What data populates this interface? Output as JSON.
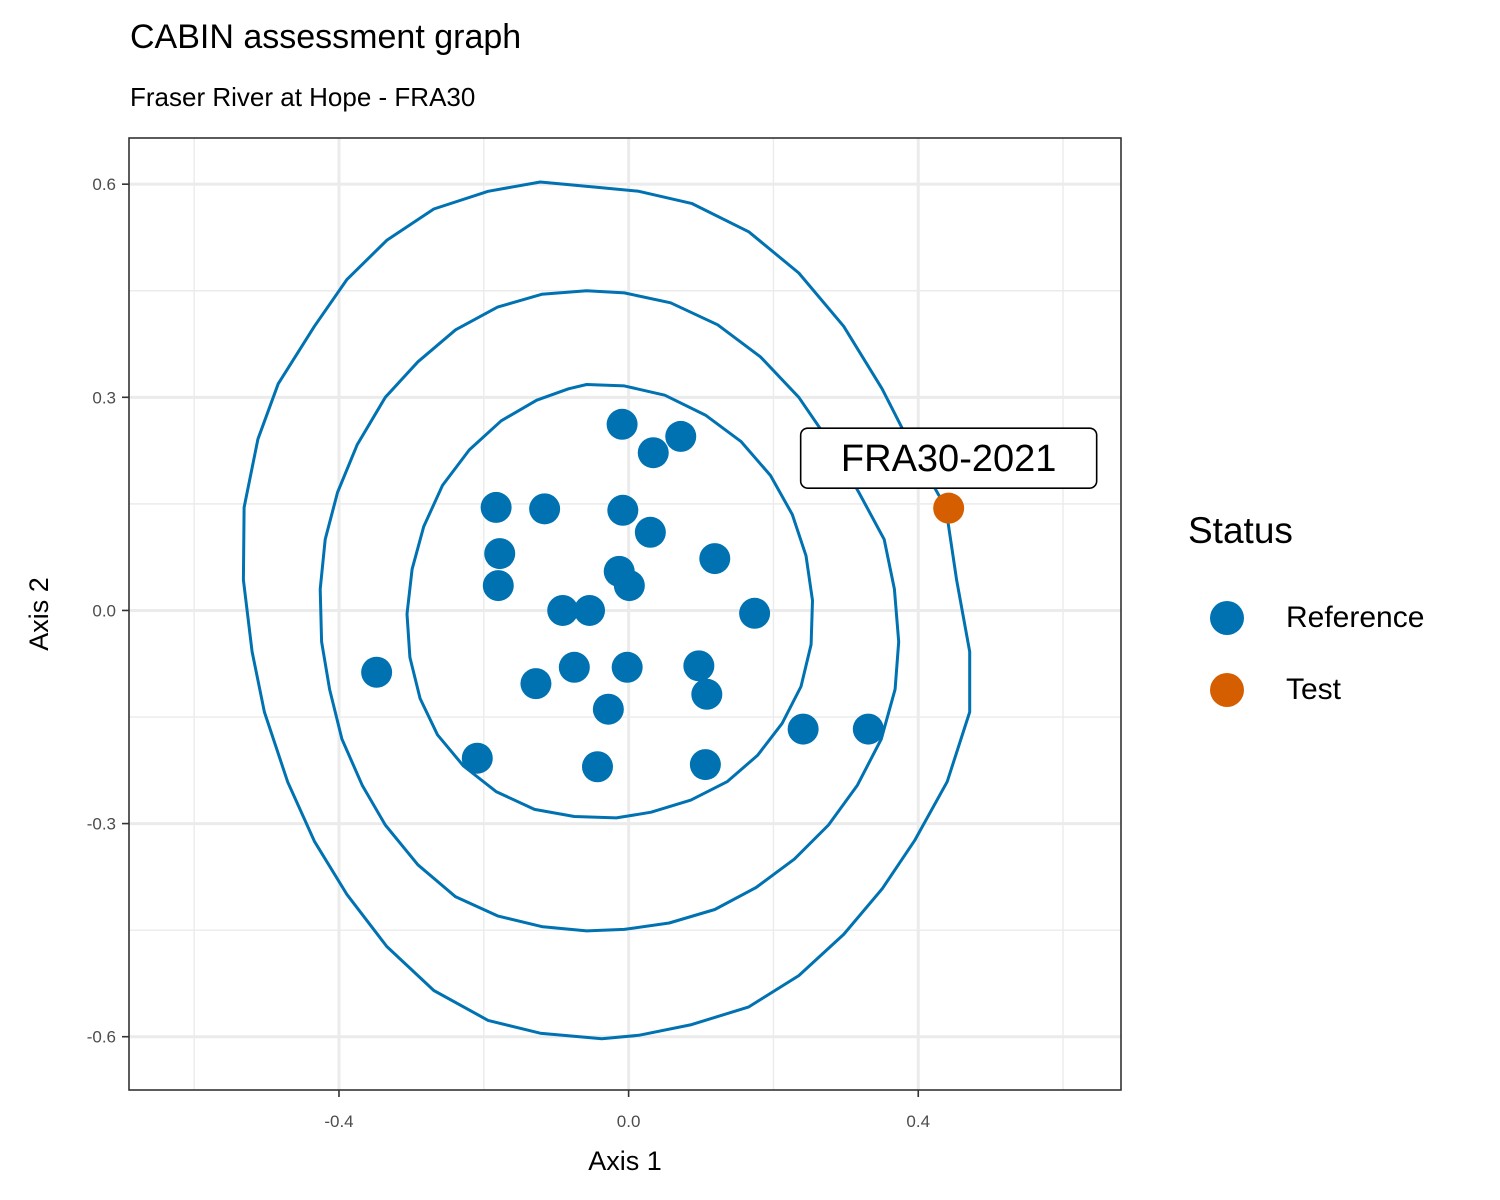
{
  "title": "CABIN assessment graph",
  "subtitle": "Fraser River at Hope - FRA30",
  "legend": {
    "title": "Status",
    "items": [
      {
        "label": "Reference",
        "color": "#0072B2"
      },
      {
        "label": "Test",
        "color": "#D55E00"
      }
    ]
  },
  "chart_data": {
    "type": "scatter",
    "title": "CABIN assessment graph",
    "subtitle": "Fraser River at Hope - FRA30",
    "xlabel": "Axis 1",
    "ylabel": "Axis 2",
    "xlim": [
      -0.69,
      0.68
    ],
    "ylim": [
      -0.675,
      0.665
    ],
    "xticks": [
      -0.4,
      0.0,
      0.4
    ],
    "xtick_labels": [
      "-0.4",
      "0.0",
      "0.4"
    ],
    "yticks": [
      -0.6,
      -0.3,
      0.0,
      0.3,
      0.6
    ],
    "ytick_labels": [
      "-0.6",
      "-0.3",
      "0.0",
      "0.3",
      "0.6"
    ],
    "grid": true,
    "legend_position": "right",
    "series": [
      {
        "name": "Reference",
        "color": "#0072B2",
        "points": [
          [
            -0.009,
            0.262
          ],
          [
            0.072,
            0.245
          ],
          [
            0.034,
            0.222
          ],
          [
            -0.183,
            0.145
          ],
          [
            -0.116,
            0.143
          ],
          [
            -0.008,
            0.141
          ],
          [
            0.03,
            0.11
          ],
          [
            -0.178,
            0.08
          ],
          [
            0.119,
            0.073
          ],
          [
            -0.013,
            0.055
          ],
          [
            0.001,
            0.035
          ],
          [
            -0.18,
            0.035
          ],
          [
            -0.091,
            0.0
          ],
          [
            -0.054,
            0.0
          ],
          [
            0.174,
            -0.004
          ],
          [
            -0.348,
            -0.087
          ],
          [
            -0.075,
            -0.08
          ],
          [
            -0.002,
            -0.08
          ],
          [
            0.097,
            -0.078
          ],
          [
            -0.128,
            -0.103
          ],
          [
            0.108,
            -0.118
          ],
          [
            -0.028,
            -0.139
          ],
          [
            0.241,
            -0.167
          ],
          [
            0.331,
            -0.167
          ],
          [
            -0.209,
            -0.208
          ],
          [
            -0.043,
            -0.22
          ],
          [
            0.106,
            -0.217
          ]
        ]
      },
      {
        "name": "Test",
        "color": "#D55E00",
        "points": [
          [
            0.442,
            0.144
          ]
        ],
        "label": "FRA30-2021"
      }
    ],
    "ellipses": {
      "color": "#0072B2",
      "rings": [
        [
          [
            -0.037,
            0.595
          ],
          [
            0.014,
            0.59
          ],
          [
            0.087,
            0.573
          ],
          [
            0.166,
            0.533
          ],
          [
            0.235,
            0.475
          ],
          [
            0.297,
            0.4
          ],
          [
            0.35,
            0.312
          ],
          [
            0.395,
            0.222
          ],
          [
            0.438,
            0.145
          ],
          [
            0.453,
            0.043
          ],
          [
            0.471,
            -0.058
          ],
          [
            0.471,
            -0.143
          ],
          [
            0.44,
            -0.241
          ],
          [
            0.395,
            -0.324
          ],
          [
            0.35,
            -0.392
          ],
          [
            0.297,
            -0.456
          ],
          [
            0.235,
            -0.514
          ],
          [
            0.166,
            -0.558
          ],
          [
            0.087,
            -0.583
          ],
          [
            0.014,
            -0.598
          ],
          [
            -0.037,
            -0.603
          ],
          [
            -0.122,
            -0.595
          ],
          [
            -0.194,
            -0.577
          ],
          [
            -0.269,
            -0.535
          ],
          [
            -0.334,
            -0.473
          ],
          [
            -0.389,
            -0.4
          ],
          [
            -0.434,
            -0.325
          ],
          [
            -0.471,
            -0.241
          ],
          [
            -0.503,
            -0.143
          ],
          [
            -0.52,
            -0.058
          ],
          [
            -0.532,
            0.043
          ],
          [
            -0.531,
            0.145
          ],
          [
            -0.512,
            0.241
          ],
          [
            -0.484,
            0.319
          ],
          [
            -0.434,
            0.4
          ],
          [
            -0.389,
            0.466
          ],
          [
            -0.334,
            0.521
          ],
          [
            -0.269,
            0.565
          ],
          [
            -0.194,
            0.59
          ],
          [
            -0.122,
            0.603
          ]
        ],
        [
          [
            -0.058,
            0.45
          ],
          [
            -0.006,
            0.447
          ],
          [
            0.058,
            0.433
          ],
          [
            0.123,
            0.402
          ],
          [
            0.182,
            0.357
          ],
          [
            0.235,
            0.3
          ],
          [
            0.28,
            0.233
          ],
          [
            0.318,
            0.166
          ],
          [
            0.353,
            0.1
          ],
          [
            0.367,
            0.03
          ],
          [
            0.373,
            -0.044
          ],
          [
            0.368,
            -0.111
          ],
          [
            0.349,
            -0.181
          ],
          [
            0.316,
            -0.246
          ],
          [
            0.276,
            -0.302
          ],
          [
            0.229,
            -0.35
          ],
          [
            0.176,
            -0.39
          ],
          [
            0.119,
            -0.421
          ],
          [
            0.056,
            -0.44
          ],
          [
            -0.006,
            -0.449
          ],
          [
            -0.058,
            -0.451
          ],
          [
            -0.12,
            -0.445
          ],
          [
            -0.181,
            -0.43
          ],
          [
            -0.239,
            -0.403
          ],
          [
            -0.291,
            -0.358
          ],
          [
            -0.336,
            -0.302
          ],
          [
            -0.368,
            -0.246
          ],
          [
            -0.396,
            -0.181
          ],
          [
            -0.413,
            -0.111
          ],
          [
            -0.424,
            -0.044
          ],
          [
            -0.426,
            0.03
          ],
          [
            -0.419,
            0.1
          ],
          [
            -0.402,
            0.166
          ],
          [
            -0.375,
            0.233
          ],
          [
            -0.336,
            0.3
          ],
          [
            -0.291,
            0.35
          ],
          [
            -0.239,
            0.395
          ],
          [
            -0.181,
            0.427
          ],
          [
            -0.12,
            0.445
          ]
        ],
        [
          [
            -0.058,
            0.318
          ],
          [
            -0.006,
            0.316
          ],
          [
            0.05,
            0.303
          ],
          [
            0.106,
            0.275
          ],
          [
            0.155,
            0.238
          ],
          [
            0.196,
            0.19
          ],
          [
            0.226,
            0.135
          ],
          [
            0.245,
            0.077
          ],
          [
            0.254,
            0.014
          ],
          [
            0.252,
            -0.048
          ],
          [
            0.238,
            -0.107
          ],
          [
            0.212,
            -0.159
          ],
          [
            0.178,
            -0.204
          ],
          [
            0.136,
            -0.241
          ],
          [
            0.086,
            -0.267
          ],
          [
            0.031,
            -0.284
          ],
          [
            -0.017,
            -0.292
          ],
          [
            -0.075,
            -0.29
          ],
          [
            -0.13,
            -0.28
          ],
          [
            -0.183,
            -0.255
          ],
          [
            -0.228,
            -0.219
          ],
          [
            -0.264,
            -0.175
          ],
          [
            -0.288,
            -0.124
          ],
          [
            -0.302,
            -0.066
          ],
          [
            -0.306,
            -0.005
          ],
          [
            -0.299,
            0.058
          ],
          [
            -0.283,
            0.118
          ],
          [
            -0.257,
            0.176
          ],
          [
            -0.22,
            0.226
          ],
          [
            -0.176,
            0.267
          ],
          [
            -0.127,
            0.296
          ],
          [
            -0.083,
            0.312
          ]
        ]
      ]
    },
    "annotation": {
      "text": "FRA30-2021",
      "x": 0.442,
      "y": 0.144
    }
  }
}
